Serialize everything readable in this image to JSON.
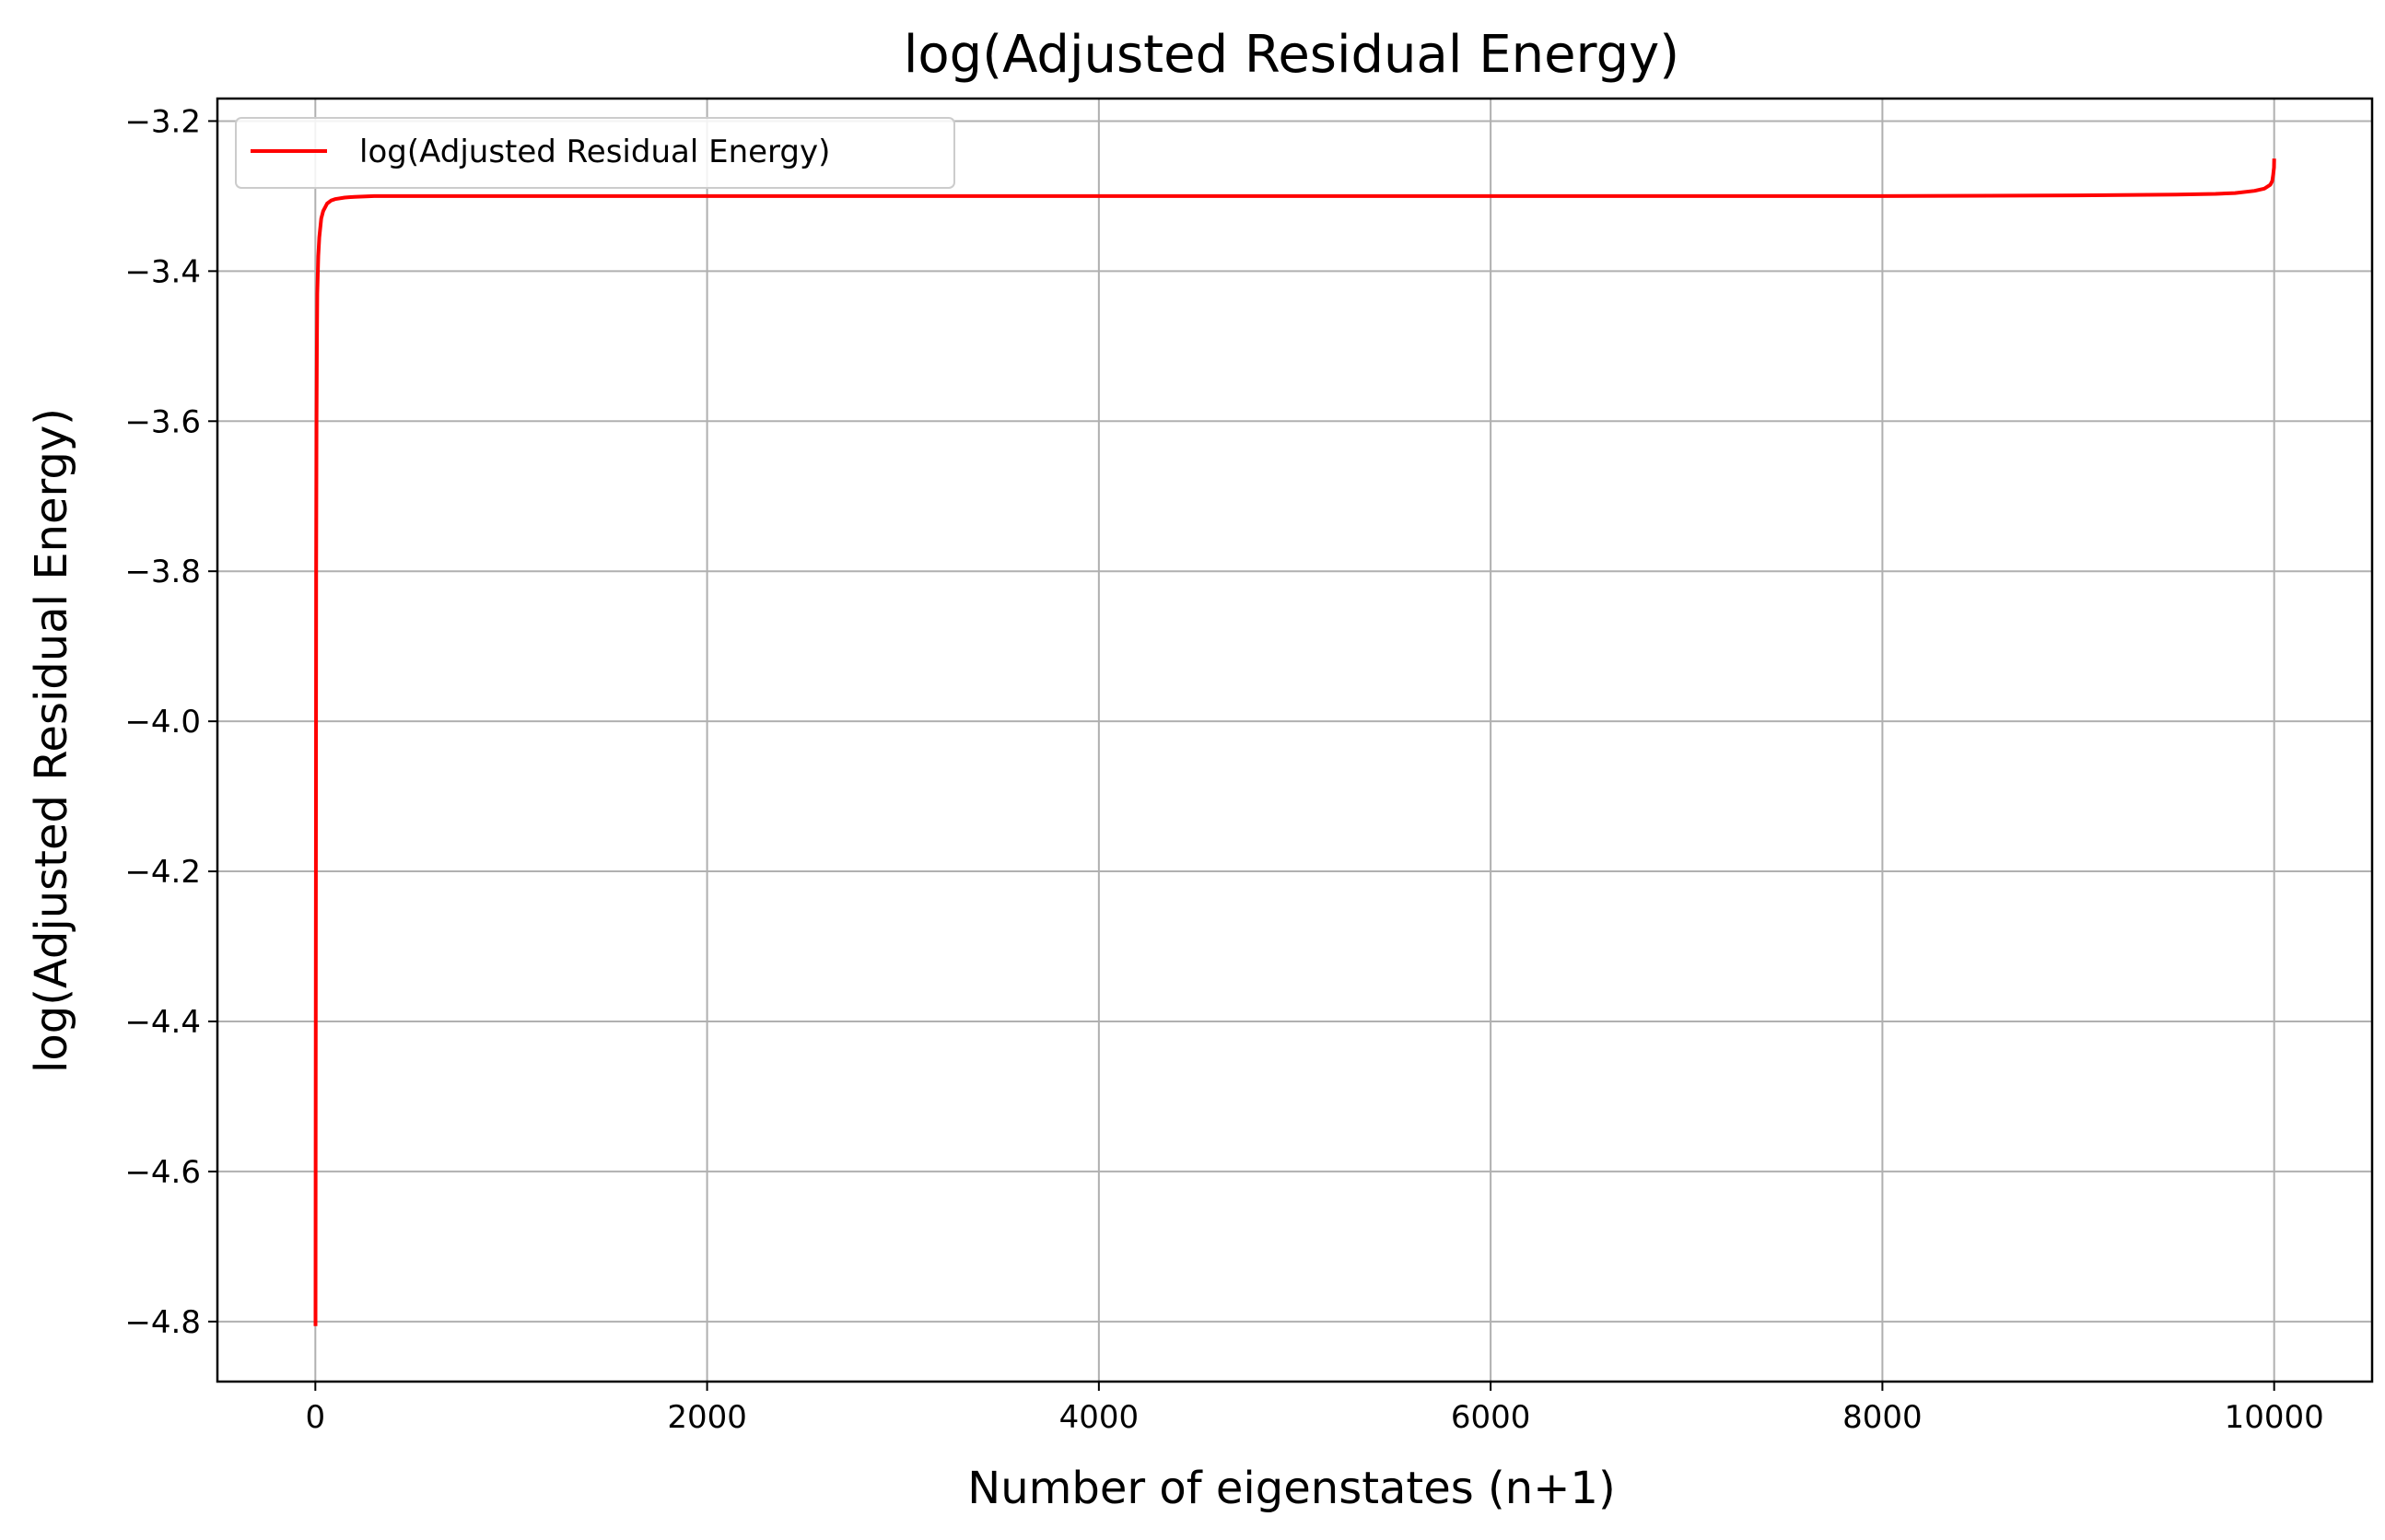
{
  "chart_data": {
    "type": "line",
    "title": "log(Adjusted Residual Energy)",
    "xlabel": "Number of eigenstates (n+1)",
    "ylabel": "log(Adjusted Residual Energy)",
    "xlim": [
      -500,
      10500
    ],
    "ylim": [
      -4.88,
      -3.17
    ],
    "xticks": [
      0,
      2000,
      4000,
      6000,
      8000,
      10000
    ],
    "xtick_labels": [
      "0",
      "2000",
      "4000",
      "6000",
      "8000",
      "10000"
    ],
    "yticks": [
      -3.2,
      -3.4,
      -3.6,
      -3.8,
      -4.0,
      -4.2,
      -4.4,
      -4.6,
      -4.8
    ],
    "ytick_labels": [
      "−3.2",
      "−3.4",
      "−3.6",
      "−3.8",
      "−4.0",
      "−4.2",
      "−4.4",
      "−4.6",
      "−4.8"
    ],
    "grid": true,
    "legend_position": "upper-left",
    "series": [
      {
        "name": "log(Adjusted Residual Energy)",
        "color": "#ff0000",
        "x": [
          1,
          2,
          3,
          4,
          6,
          8,
          10,
          15,
          20,
          30,
          40,
          60,
          80,
          100,
          150,
          200,
          300,
          500,
          1000,
          2000,
          3000,
          4000,
          5000,
          6000,
          7000,
          8000,
          9000,
          9500,
          9700,
          9800,
          9900,
          9950,
          9980,
          9990,
          9995,
          9999,
          10000
        ],
        "y": [
          -4.806,
          -4.5,
          -4.1,
          -3.8,
          -3.6,
          -3.5,
          -3.43,
          -3.38,
          -3.355,
          -3.33,
          -3.32,
          -3.31,
          -3.306,
          -3.304,
          -3.302,
          -3.301,
          -3.3,
          -3.3,
          -3.3,
          -3.3,
          -3.3,
          -3.3,
          -3.3,
          -3.3,
          -3.3,
          -3.3,
          -3.299,
          -3.298,
          -3.297,
          -3.296,
          -3.293,
          -3.29,
          -3.285,
          -3.28,
          -3.272,
          -3.262,
          -3.25
        ]
      }
    ]
  }
}
